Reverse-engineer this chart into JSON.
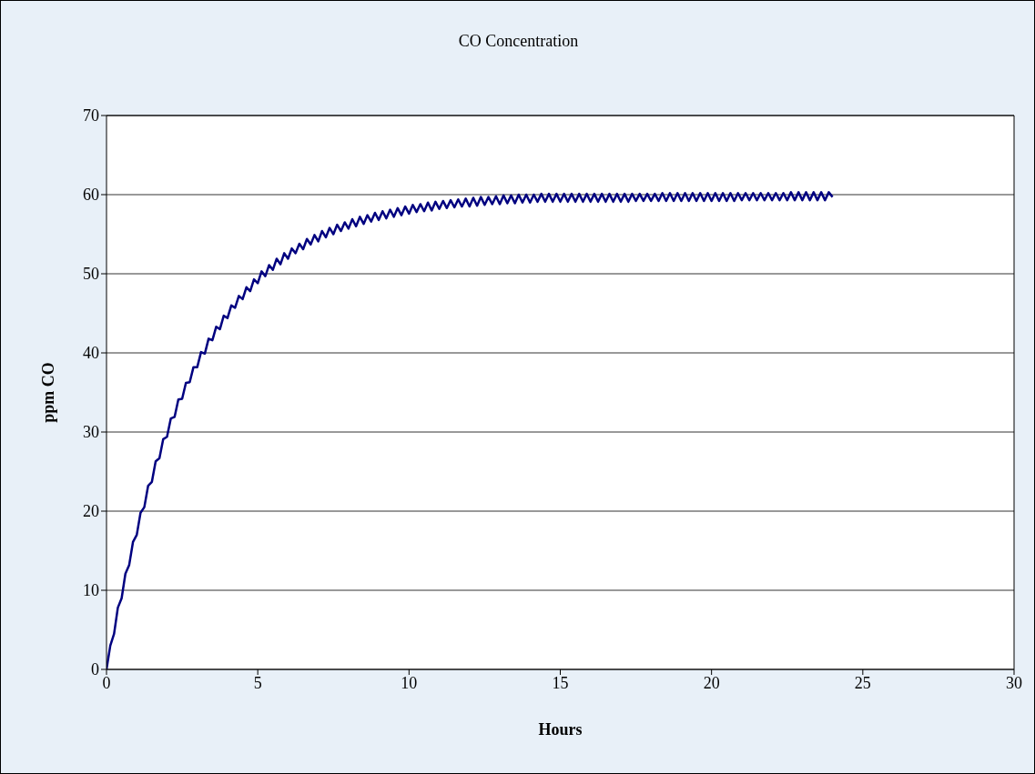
{
  "chart_data": {
    "type": "line",
    "title": "CO Concentration",
    "xlabel": "Hours",
    "ylabel": "ppm CO",
    "x": [
      0,
      0.125,
      0.25,
      0.375,
      0.5,
      0.625,
      0.75,
      0.875,
      1,
      1.125,
      1.25,
      1.375,
      1.5,
      1.625,
      1.75,
      1.875,
      2,
      2.125,
      2.25,
      2.375,
      2.5,
      2.625,
      2.75,
      2.875,
      3,
      3.125,
      3.25,
      3.375,
      3.5,
      3.625,
      3.75,
      3.875,
      4,
      4.125,
      4.25,
      4.375,
      4.5,
      4.625,
      4.75,
      4.875,
      5,
      5.125,
      5.25,
      5.375,
      5.5,
      5.625,
      5.75,
      5.875,
      6,
      6.125,
      6.25,
      6.375,
      6.5,
      6.625,
      6.75,
      6.875,
      7,
      7.125,
      7.25,
      7.375,
      7.5,
      7.625,
      7.75,
      7.875,
      8,
      8.125,
      8.25,
      8.375,
      8.5,
      8.625,
      8.75,
      8.875,
      9,
      9.125,
      9.25,
      9.375,
      9.5,
      9.625,
      9.75,
      9.875,
      10,
      10.125,
      10.25,
      10.375,
      10.5,
      10.625,
      10.75,
      10.875,
      11,
      11.125,
      11.25,
      11.375,
      11.5,
      11.625,
      11.75,
      11.875,
      12,
      12.125,
      12.25,
      12.375,
      12.5,
      12.625,
      12.75,
      12.875,
      13,
      13.125,
      13.25,
      13.375,
      13.5,
      13.625,
      13.75,
      13.875,
      14,
      14.125,
      14.25,
      14.375,
      14.5,
      14.625,
      14.75,
      14.875,
      15,
      15.125,
      15.25,
      15.375,
      15.5,
      15.625,
      15.75,
      15.875,
      16,
      16.125,
      16.25,
      16.375,
      16.5,
      16.625,
      16.75,
      16.875,
      17,
      17.125,
      17.25,
      17.375,
      17.5,
      17.625,
      17.75,
      17.875,
      18,
      18.125,
      18.25,
      18.375,
      18.5,
      18.625,
      18.75,
      18.875,
      19,
      19.125,
      19.25,
      19.375,
      19.5,
      19.625,
      19.75,
      19.875,
      20,
      20.125,
      20.25,
      20.375,
      20.5,
      20.625,
      20.75,
      20.875,
      21,
      21.125,
      21.25,
      21.375,
      21.5,
      21.625,
      21.75,
      21.875,
      22,
      22.125,
      22.25,
      22.375,
      22.5,
      22.625,
      22.75,
      22.875,
      23,
      23.125,
      23.25,
      23.375,
      23.5,
      23.625,
      23.75,
      23.875,
      24
    ],
    "series": [
      {
        "color": "#000080",
        "values": [
          0,
          3.0,
          4.5,
          7.8,
          9.0,
          12.1,
          13.2,
          16.1,
          17.0,
          19.8,
          20.5,
          23.2,
          23.7,
          26.3,
          26.7,
          29.1,
          29.4,
          31.7,
          31.9,
          34.1,
          34.2,
          36.2,
          36.3,
          38.2,
          38.2,
          40.1,
          39.9,
          41.8,
          41.6,
          43.3,
          43.0,
          44.7,
          44.4,
          46.0,
          45.7,
          47.2,
          46.8,
          48.3,
          47.8,
          49.3,
          48.8,
          50.3,
          49.7,
          51.1,
          50.5,
          51.9,
          51.2,
          52.6,
          51.9,
          53.2,
          52.6,
          53.8,
          53.1,
          54.4,
          53.7,
          54.9,
          54.1,
          55.4,
          54.6,
          55.8,
          55.0,
          56.2,
          55.4,
          56.5,
          55.7,
          56.9,
          56.0,
          57.2,
          56.3,
          57.4,
          56.6,
          57.7,
          56.8,
          57.9,
          57.0,
          58.1,
          57.2,
          58.3,
          57.4,
          58.5,
          57.6,
          58.7,
          57.8,
          58.8,
          57.9,
          59.0,
          58.0,
          59.1,
          58.2,
          59.2,
          58.3,
          59.3,
          58.4,
          59.4,
          58.5,
          59.5,
          58.5,
          59.6,
          58.6,
          59.7,
          58.7,
          59.7,
          58.8,
          59.8,
          58.8,
          59.9,
          58.9,
          59.9,
          58.9,
          60.0,
          59.0,
          60.0,
          59.0,
          60.0,
          59.1,
          60.1,
          59.1,
          60.1,
          59.1,
          60.1,
          59.1,
          60.1,
          59.1,
          60.1,
          59.1,
          60.1,
          59.1,
          60.1,
          59.1,
          60.1,
          59.1,
          60.1,
          59.1,
          60.1,
          59.1,
          60.1,
          59.1,
          60.1,
          59.1,
          60.1,
          59.2,
          60.1,
          59.2,
          60.1,
          59.2,
          60.1,
          59.2,
          60.2,
          59.2,
          60.2,
          59.2,
          60.2,
          59.2,
          60.2,
          59.2,
          60.2,
          59.2,
          60.2,
          59.2,
          60.2,
          59.2,
          60.2,
          59.2,
          60.2,
          59.2,
          60.2,
          59.2,
          60.2,
          59.3,
          60.2,
          59.3,
          60.2,
          59.3,
          60.2,
          59.3,
          60.2,
          59.3,
          60.2,
          59.3,
          60.2,
          59.3,
          60.3,
          59.3,
          60.3,
          59.3,
          60.3,
          59.3,
          60.3,
          59.3,
          60.3,
          59.3,
          60.3,
          59.7
        ]
      }
    ],
    "xlim": [
      0,
      30
    ],
    "xticks": [
      0,
      5,
      10,
      15,
      20,
      25,
      30
    ],
    "ylim": [
      0,
      70
    ],
    "yticks": [
      0,
      10,
      20,
      30,
      40,
      50,
      60,
      70
    ],
    "grid": "y",
    "legend": false,
    "marker": "none",
    "line_style": "solid"
  }
}
